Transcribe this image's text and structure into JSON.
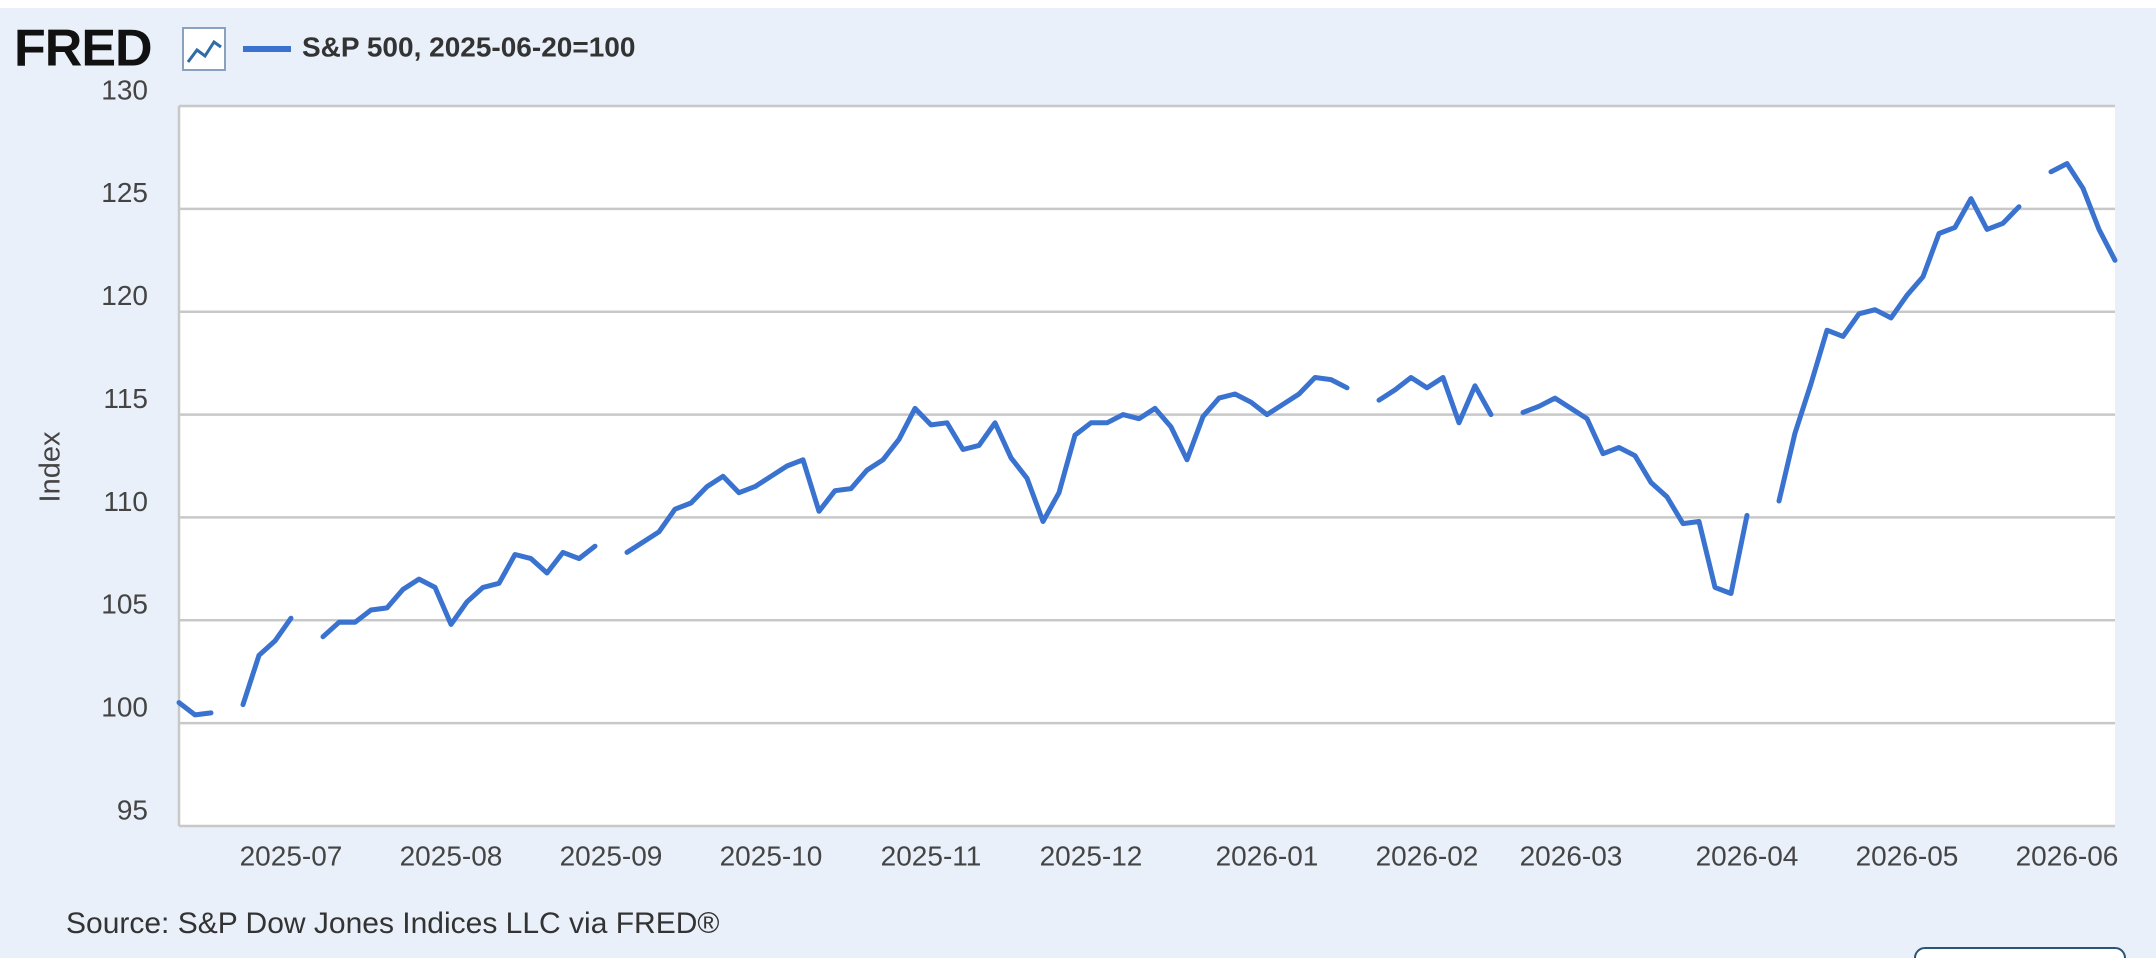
{
  "logo": "FRED",
  "chart_data": {
    "type": "line",
    "y_label": "Index",
    "source": "Source: S&P Dow Jones Indices LLC via FRED®",
    "categories": [
      null,
      null,
      null,
      null,
      null,
      null,
      null,
      "2025-07",
      null,
      null,
      null,
      null,
      null,
      null,
      null,
      null,
      null,
      "2025-08",
      null,
      null,
      null,
      null,
      null,
      null,
      null,
      null,
      null,
      "2025-09",
      null,
      null,
      null,
      null,
      null,
      null,
      null,
      null,
      null,
      "2025-10",
      null,
      null,
      null,
      null,
      null,
      null,
      null,
      null,
      null,
      "2025-11",
      null,
      null,
      null,
      null,
      null,
      null,
      null,
      null,
      null,
      "2025-12",
      null,
      null,
      null,
      null,
      null,
      null,
      null,
      null,
      null,
      null,
      "2026-01",
      null,
      null,
      null,
      null,
      null,
      null,
      null,
      null,
      null,
      "2026-02",
      null,
      null,
      null,
      null,
      null,
      null,
      null,
      null,
      "2026-03",
      null,
      null,
      null,
      null,
      null,
      null,
      null,
      null,
      null,
      null,
      "2026-04",
      null,
      null,
      null,
      null,
      null,
      null,
      null,
      null,
      null,
      "2026-05",
      null,
      null,
      null,
      null,
      null,
      null,
      null,
      null,
      null,
      "2026-06",
      null,
      null,
      null
    ],
    "series": [
      {
        "name": "S&P 500, 2025-06-20=100",
        "color": "#3a72d0",
        "values": [
          101.0,
          100.4,
          100.5,
          null,
          100.9,
          103.3,
          104.0,
          105.1,
          null,
          104.2,
          104.9,
          104.9,
          105.5,
          105.6,
          106.5,
          107.0,
          106.6,
          104.8,
          105.9,
          106.6,
          106.8,
          108.2,
          108.0,
          107.3,
          108.3,
          108.0,
          108.6,
          null,
          108.3,
          108.8,
          109.3,
          110.4,
          110.7,
          111.5,
          112.0,
          111.2,
          111.5,
          112.0,
          112.5,
          112.8,
          110.3,
          111.3,
          111.4,
          112.3,
          112.8,
          113.8,
          115.3,
          114.5,
          114.6,
          113.3,
          113.5,
          114.6,
          112.9,
          111.9,
          109.8,
          111.2,
          114.0,
          114.6,
          114.6,
          115.0,
          114.8,
          115.3,
          114.4,
          112.8,
          114.9,
          115.8,
          116.0,
          115.6,
          115.0,
          115.5,
          116.0,
          116.8,
          116.7,
          116.3,
          null,
          115.7,
          116.2,
          116.8,
          116.3,
          116.8,
          114.6,
          116.4,
          115.0,
          null,
          115.1,
          115.4,
          115.8,
          115.3,
          114.8,
          113.1,
          113.4,
          113.0,
          111.7,
          111.0,
          109.7,
          109.8,
          106.6,
          106.3,
          110.1,
          null,
          110.8,
          114.1,
          116.5,
          119.1,
          118.8,
          119.9,
          120.1,
          119.7,
          120.8,
          121.7,
          123.8,
          124.1,
          125.5,
          124.0,
          124.3,
          125.1,
          null,
          126.8,
          127.2,
          126.0,
          124.0,
          122.5
        ]
      }
    ],
    "ylim": [
      95,
      130
    ],
    "yticks": [
      95,
      100,
      105,
      110,
      115,
      120,
      125,
      130
    ],
    "grid": true
  }
}
